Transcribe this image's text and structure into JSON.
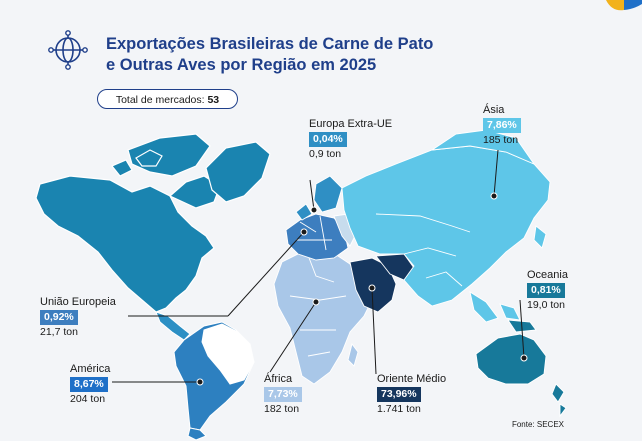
{
  "header": {
    "title_line1": "Exportações Brasileiras de Carne de Pato",
    "title_line2": "e Outras Aves por Região em 2025",
    "markets_label": "Total de mercados:",
    "markets_count": "53"
  },
  "regions": {
    "europa_extra_ue": {
      "name": "Europa Extra-UE",
      "share": "0,04%",
      "tons": "0,9 ton",
      "color": "#2f8fc4"
    },
    "asia": {
      "name": "Ásia",
      "share": "7,86%",
      "tons": "185 ton",
      "color": "#5ec6e8"
    },
    "uniao_europeia": {
      "name": "União Europeia",
      "share": "0,92%",
      "tons": "21,7 ton",
      "color": "#3d7ebf"
    },
    "oceania": {
      "name": "Oceania",
      "share": "0,81%",
      "tons": "19,0 ton",
      "color": "#17799a"
    },
    "america": {
      "name": "América",
      "share": "8,67%",
      "tons": "204 ton",
      "color": "#1f70c8"
    },
    "africa": {
      "name": "África",
      "share": "7,73%",
      "tons": "182 ton",
      "color": "#a9c7e8"
    },
    "oriente_medio": {
      "name": "Oriente Médio",
      "share": "73,96%",
      "tons": "1.741 ton",
      "color": "#15365e"
    }
  },
  "footer": {
    "source": "Fonte: SECEX"
  },
  "icons": {
    "title": "globe-network-icon"
  }
}
